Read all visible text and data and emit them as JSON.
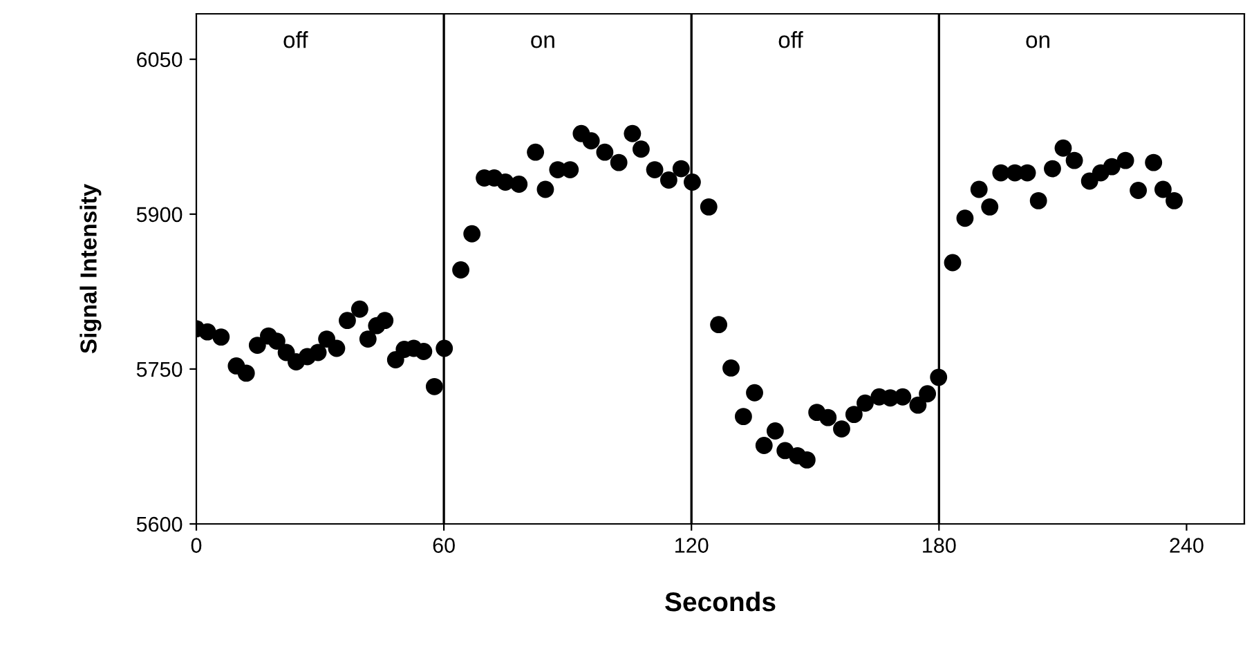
{
  "chart_data": {
    "type": "scatter",
    "xlabel": "Seconds",
    "ylabel": "Signal Intensity",
    "xlim": [
      0,
      254
    ],
    "ylim": [
      5600,
      6094
    ],
    "xticks": [
      0,
      60,
      120,
      180,
      240
    ],
    "yticks": [
      5600,
      5750,
      5900,
      6050
    ],
    "grid": false,
    "marker": "circle",
    "series": [
      {
        "color": "#000000",
        "x": [
          0,
          2.7,
          6,
          9.7,
          12.1,
          14.8,
          17.5,
          19.5,
          21.8,
          24.2,
          26.9,
          29.5,
          31.6,
          34,
          36.6,
          39.6,
          41.6,
          43.7,
          45.7,
          48.3,
          50.4,
          52.7,
          55.1,
          57.7,
          60.1,
          64.1,
          66.8,
          69.8,
          72.2,
          74.9,
          78.2,
          82.2,
          84.6,
          87.6,
          90.6,
          93.3,
          95.7,
          99,
          102.4,
          105.7,
          107.8,
          111.1,
          114.5,
          117.5,
          120.2,
          124.2,
          126.6,
          129.6,
          132.6,
          135.3,
          137.6,
          140.3,
          142.7,
          145.7,
          148,
          150.4,
          153.1,
          156.4,
          159.4,
          162.1,
          165.5,
          168.2,
          171.2,
          174.9,
          177.2,
          179.9,
          183.3,
          186.3,
          189.7,
          192.3,
          195,
          198.4,
          201.4,
          204.1,
          207.5,
          210.1,
          212.8,
          216.5,
          219.2,
          221.9,
          225.2,
          228.3,
          232,
          234.3,
          237
        ],
        "values": [
          5789,
          5786,
          5781,
          5753,
          5746,
          5773,
          5782,
          5777,
          5766,
          5757,
          5762,
          5766,
          5779,
          5770,
          5797,
          5808,
          5779,
          5792,
          5797,
          5759,
          5769,
          5770,
          5767,
          5733,
          5770,
          5846,
          5881,
          5935,
          5935,
          5931,
          5929,
          5960,
          5924,
          5943,
          5943,
          5978,
          5971,
          5960,
          5950,
          5978,
          5963,
          5943,
          5933,
          5944,
          5931,
          5907,
          5793,
          5751,
          5704,
          5727,
          5676,
          5690,
          5671,
          5666,
          5662,
          5708,
          5703,
          5692,
          5706,
          5717,
          5723,
          5722,
          5723,
          5715,
          5726,
          5742,
          5853,
          5896,
          5924,
          5907,
          5940,
          5940,
          5940,
          5913,
          5944,
          5964,
          5952,
          5932,
          5940,
          5946,
          5952,
          5923,
          5950,
          5924,
          5913
        ]
      }
    ],
    "ref_lines": [
      {
        "axis": "x",
        "value": 60,
        "color": "#000000"
      },
      {
        "axis": "x",
        "value": 120,
        "color": "#000000"
      },
      {
        "axis": "x",
        "value": 180,
        "color": "#000000"
      }
    ],
    "annotations": [
      "off",
      "on",
      "off",
      "on"
    ]
  }
}
